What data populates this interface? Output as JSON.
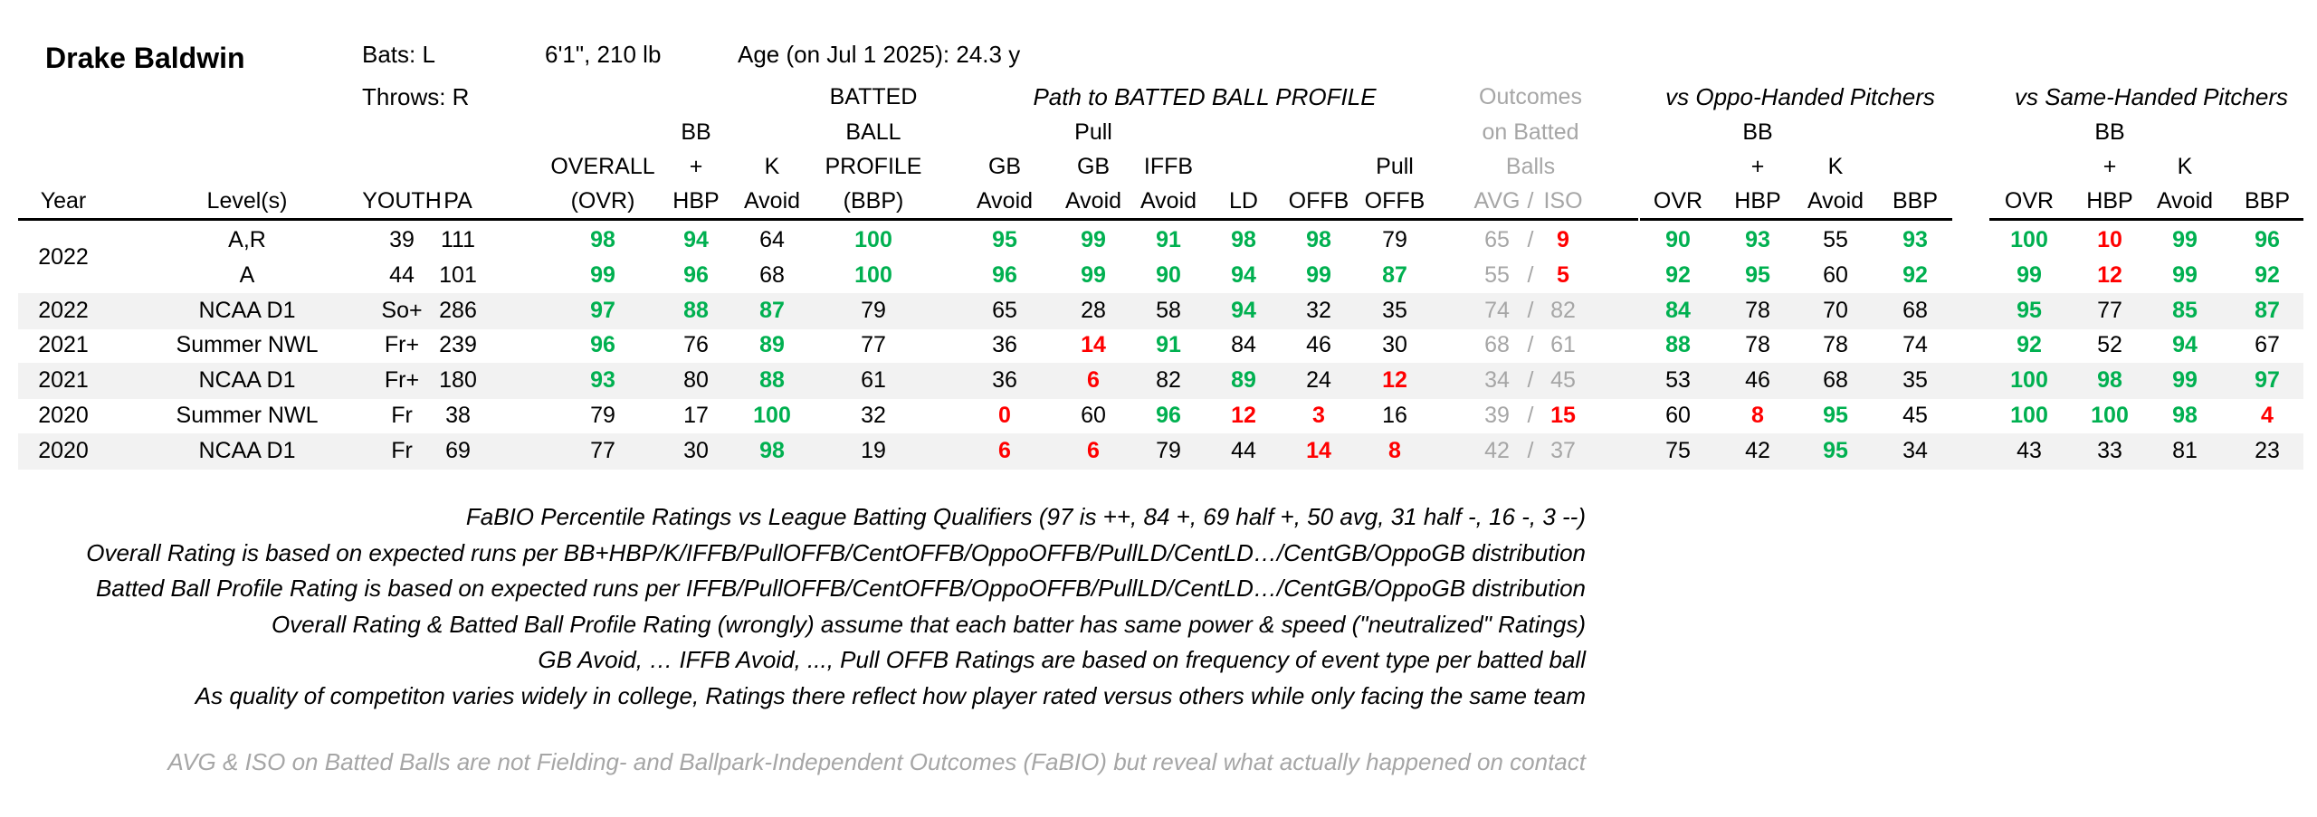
{
  "player": {
    "name": "Drake Baldwin",
    "bats": "Bats: L",
    "throws": "Throws: R",
    "size": "6'1\", 210 lb",
    "age": "Age (on Jul 1 2025): 24.3 y"
  },
  "headers": {
    "path_group": "Path to BATTED BALL PROFILE",
    "outcomes_group": [
      "Outcomes",
      "on Batted",
      "Balls"
    ],
    "oppo_group": "vs Oppo-Handed Pitchers",
    "same_group": "vs Same-Handed Pitchers",
    "col_year": "Year",
    "col_level": "Level(s)",
    "col_youth": "YOUTH",
    "col_pa": "PA",
    "col_overall": [
      "OVERALL",
      "(OVR)"
    ],
    "col_bbhbp": [
      "BB",
      "+",
      "HBP"
    ],
    "col_kavoid": [
      "K",
      "Avoid"
    ],
    "col_bbp": [
      "BATTED",
      "BALL",
      "PROFILE",
      "(BBP)"
    ],
    "col_gbavoid": [
      "GB",
      "Avoid"
    ],
    "col_pullgb": [
      "Pull",
      "GB",
      "Avoid"
    ],
    "col_iffb": [
      "IFFB",
      "Avoid"
    ],
    "col_ld": "LD",
    "col_offb": "OFFB",
    "col_pulloffb": [
      "Pull",
      "OFFB"
    ],
    "col_avgiso": [
      "AVG",
      "/",
      "ISO"
    ],
    "col_split_ovr": "OVR",
    "col_split_bbhbp": [
      "BB",
      "+",
      "HBP"
    ],
    "col_split_k": [
      "K",
      "Avoid"
    ],
    "col_split_bbp": "BBP"
  },
  "rows": [
    {
      "year": "2022",
      "level": "A,R",
      "youth": "39",
      "pa": "111",
      "ovr": {
        "v": "98",
        "c": "green"
      },
      "bbhbp": {
        "v": "94",
        "c": "green"
      },
      "kavoid": {
        "v": "64",
        "c": ""
      },
      "bbp": {
        "v": "100",
        "c": "green"
      },
      "gbavoid": {
        "v": "95",
        "c": "green"
      },
      "pullgb": {
        "v": "99",
        "c": "green"
      },
      "iffb": {
        "v": "91",
        "c": "green"
      },
      "ld": {
        "v": "98",
        "c": "green"
      },
      "offb": {
        "v": "98",
        "c": "green"
      },
      "pulloffb": {
        "v": "79",
        "c": ""
      },
      "avg": "65",
      "iso": {
        "v": "9",
        "c": "red"
      },
      "o_ovr": {
        "v": "90",
        "c": "green"
      },
      "o_bb": {
        "v": "93",
        "c": "green"
      },
      "o_k": {
        "v": "55",
        "c": ""
      },
      "o_bbp": {
        "v": "93",
        "c": "green"
      },
      "s_ovr": {
        "v": "100",
        "c": "green"
      },
      "s_bb": {
        "v": "10",
        "c": "red"
      },
      "s_k": {
        "v": "99",
        "c": "green"
      },
      "s_bbp": {
        "v": "96",
        "c": "green"
      }
    },
    {
      "year": "",
      "level": "A",
      "youth": "44",
      "pa": "101",
      "ovr": {
        "v": "99",
        "c": "green"
      },
      "bbhbp": {
        "v": "96",
        "c": "green"
      },
      "kavoid": {
        "v": "68",
        "c": ""
      },
      "bbp": {
        "v": "100",
        "c": "green"
      },
      "gbavoid": {
        "v": "96",
        "c": "green"
      },
      "pullgb": {
        "v": "99",
        "c": "green"
      },
      "iffb": {
        "v": "90",
        "c": "green"
      },
      "ld": {
        "v": "94",
        "c": "green"
      },
      "offb": {
        "v": "99",
        "c": "green"
      },
      "pulloffb": {
        "v": "87",
        "c": "green"
      },
      "avg": "55",
      "iso": {
        "v": "5",
        "c": "red"
      },
      "o_ovr": {
        "v": "92",
        "c": "green"
      },
      "o_bb": {
        "v": "95",
        "c": "green"
      },
      "o_k": {
        "v": "60",
        "c": ""
      },
      "o_bbp": {
        "v": "92",
        "c": "green"
      },
      "s_ovr": {
        "v": "99",
        "c": "green"
      },
      "s_bb": {
        "v": "12",
        "c": "red"
      },
      "s_k": {
        "v": "99",
        "c": "green"
      },
      "s_bbp": {
        "v": "92",
        "c": "green"
      }
    },
    {
      "year": "2022",
      "level": "NCAA D1",
      "youth": "So+",
      "pa": "286",
      "ovr": {
        "v": "97",
        "c": "green"
      },
      "bbhbp": {
        "v": "88",
        "c": "green"
      },
      "kavoid": {
        "v": "87",
        "c": "green"
      },
      "bbp": {
        "v": "79",
        "c": ""
      },
      "gbavoid": {
        "v": "65",
        "c": ""
      },
      "pullgb": {
        "v": "28",
        "c": ""
      },
      "iffb": {
        "v": "58",
        "c": ""
      },
      "ld": {
        "v": "94",
        "c": "green"
      },
      "offb": {
        "v": "32",
        "c": ""
      },
      "pulloffb": {
        "v": "35",
        "c": ""
      },
      "avg": "74",
      "iso": {
        "v": "82",
        "c": "gray"
      },
      "o_ovr": {
        "v": "84",
        "c": "green"
      },
      "o_bb": {
        "v": "78",
        "c": ""
      },
      "o_k": {
        "v": "70",
        "c": ""
      },
      "o_bbp": {
        "v": "68",
        "c": ""
      },
      "s_ovr": {
        "v": "95",
        "c": "green"
      },
      "s_bb": {
        "v": "77",
        "c": ""
      },
      "s_k": {
        "v": "85",
        "c": "green"
      },
      "s_bbp": {
        "v": "87",
        "c": "green"
      }
    },
    {
      "year": "2021",
      "level": "Summer NWL",
      "youth": "Fr+",
      "pa": "239",
      "ovr": {
        "v": "96",
        "c": "green"
      },
      "bbhbp": {
        "v": "76",
        "c": ""
      },
      "kavoid": {
        "v": "89",
        "c": "green"
      },
      "bbp": {
        "v": "77",
        "c": ""
      },
      "gbavoid": {
        "v": "36",
        "c": ""
      },
      "pullgb": {
        "v": "14",
        "c": "red"
      },
      "iffb": {
        "v": "91",
        "c": "green"
      },
      "ld": {
        "v": "84",
        "c": ""
      },
      "offb": {
        "v": "46",
        "c": ""
      },
      "pulloffb": {
        "v": "30",
        "c": ""
      },
      "avg": "68",
      "iso": {
        "v": "61",
        "c": "gray"
      },
      "o_ovr": {
        "v": "88",
        "c": "green"
      },
      "o_bb": {
        "v": "78",
        "c": ""
      },
      "o_k": {
        "v": "78",
        "c": ""
      },
      "o_bbp": {
        "v": "74",
        "c": ""
      },
      "s_ovr": {
        "v": "92",
        "c": "green"
      },
      "s_bb": {
        "v": "52",
        "c": ""
      },
      "s_k": {
        "v": "94",
        "c": "green"
      },
      "s_bbp": {
        "v": "67",
        "c": ""
      }
    },
    {
      "year": "2021",
      "level": "NCAA D1",
      "youth": "Fr+",
      "pa": "180",
      "ovr": {
        "v": "93",
        "c": "green"
      },
      "bbhbp": {
        "v": "80",
        "c": ""
      },
      "kavoid": {
        "v": "88",
        "c": "green"
      },
      "bbp": {
        "v": "61",
        "c": ""
      },
      "gbavoid": {
        "v": "36",
        "c": ""
      },
      "pullgb": {
        "v": "6",
        "c": "red"
      },
      "iffb": {
        "v": "82",
        "c": ""
      },
      "ld": {
        "v": "89",
        "c": "green"
      },
      "offb": {
        "v": "24",
        "c": ""
      },
      "pulloffb": {
        "v": "12",
        "c": "red"
      },
      "avg": "34",
      "iso": {
        "v": "45",
        "c": "gray"
      },
      "o_ovr": {
        "v": "53",
        "c": ""
      },
      "o_bb": {
        "v": "46",
        "c": ""
      },
      "o_k": {
        "v": "68",
        "c": ""
      },
      "o_bbp": {
        "v": "35",
        "c": ""
      },
      "s_ovr": {
        "v": "100",
        "c": "green"
      },
      "s_bb": {
        "v": "98",
        "c": "green"
      },
      "s_k": {
        "v": "99",
        "c": "green"
      },
      "s_bbp": {
        "v": "97",
        "c": "green"
      }
    },
    {
      "year": "2020",
      "level": "Summer NWL",
      "youth": "Fr",
      "pa": "38",
      "ovr": {
        "v": "79",
        "c": ""
      },
      "bbhbp": {
        "v": "17",
        "c": ""
      },
      "kavoid": {
        "v": "100",
        "c": "green"
      },
      "bbp": {
        "v": "32",
        "c": ""
      },
      "gbavoid": {
        "v": "0",
        "c": "red"
      },
      "pullgb": {
        "v": "60",
        "c": ""
      },
      "iffb": {
        "v": "96",
        "c": "green"
      },
      "ld": {
        "v": "12",
        "c": "red"
      },
      "offb": {
        "v": "3",
        "c": "red"
      },
      "pulloffb": {
        "v": "16",
        "c": ""
      },
      "avg": "39",
      "iso": {
        "v": "15",
        "c": "red"
      },
      "o_ovr": {
        "v": "60",
        "c": ""
      },
      "o_bb": {
        "v": "8",
        "c": "red"
      },
      "o_k": {
        "v": "95",
        "c": "green"
      },
      "o_bbp": {
        "v": "45",
        "c": ""
      },
      "s_ovr": {
        "v": "100",
        "c": "green"
      },
      "s_bb": {
        "v": "100",
        "c": "green"
      },
      "s_k": {
        "v": "98",
        "c": "green"
      },
      "s_bbp": {
        "v": "4",
        "c": "red"
      }
    },
    {
      "year": "2020",
      "level": "NCAA D1",
      "youth": "Fr",
      "pa": "69",
      "ovr": {
        "v": "77",
        "c": ""
      },
      "bbhbp": {
        "v": "30",
        "c": ""
      },
      "kavoid": {
        "v": "98",
        "c": "green"
      },
      "bbp": {
        "v": "19",
        "c": ""
      },
      "gbavoid": {
        "v": "6",
        "c": "red"
      },
      "pullgb": {
        "v": "6",
        "c": "red"
      },
      "iffb": {
        "v": "79",
        "c": ""
      },
      "ld": {
        "v": "44",
        "c": ""
      },
      "offb": {
        "v": "14",
        "c": "red"
      },
      "pulloffb": {
        "v": "8",
        "c": "red"
      },
      "avg": "42",
      "iso": {
        "v": "37",
        "c": "gray"
      },
      "o_ovr": {
        "v": "75",
        "c": ""
      },
      "o_bb": {
        "v": "42",
        "c": ""
      },
      "o_k": {
        "v": "95",
        "c": "green"
      },
      "o_bbp": {
        "v": "34",
        "c": ""
      },
      "s_ovr": {
        "v": "43",
        "c": ""
      },
      "s_bb": {
        "v": "33",
        "c": ""
      },
      "s_k": {
        "v": "81",
        "c": ""
      },
      "s_bbp": {
        "v": "23",
        "c": ""
      }
    }
  ],
  "notes": [
    "FaBIO Percentile Ratings vs League Batting Qualifiers (97 is ++, 84 +, 69 half +, 50 avg, 31 half -, 16 -, 3 --)",
    "Overall Rating is based on expected runs per BB+HBP/K/IFFB/PullOFFB/CentOFFB/OppoOFFB/PullLD/CentLD…/CentGB/OppoGB distribution",
    "Batted Ball Profile Rating is based on expected runs per IFFB/PullOFFB/CentOFFB/OppoOFFB/PullLD/CentLD…/CentGB/OppoGB distribution",
    "Overall Rating & Batted Ball Profile Rating (wrongly) assume that each batter has same power & speed (\"neutralized\" Ratings)",
    "GB Avoid, … IFFB Avoid, ..., Pull OFFB Ratings are based on frequency of event type per batted ball",
    "As quality of competiton varies widely in college, Ratings there reflect how player rated versus others while only facing the same team"
  ],
  "footnote": "AVG & ISO on Batted Balls are not Fielding- and Ballpark-Independent Outcomes (FaBIO) but reveal what actually happened on contact",
  "colors": {
    "green": "#00b050",
    "red": "#ff0000",
    "gray": "#a6a6a6",
    "band": "#f2f2f2"
  }
}
